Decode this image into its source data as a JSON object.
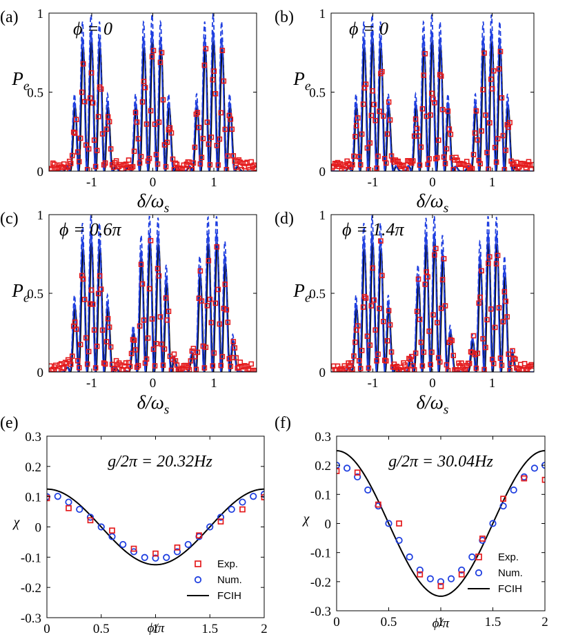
{
  "colors": {
    "exp": "#e41a1c",
    "num": "#1f3fe0",
    "theory": "#000000",
    "dashed": "#1f3fe0",
    "axis": "#000000"
  },
  "chart_data": [
    {
      "panel": "(a)",
      "type": "line",
      "annotation": "ϕ = 0",
      "ylabel": "Pe",
      "xlabel": "δ/ωs",
      "xlim": [
        -1.7,
        1.7
      ],
      "ylim": [
        0,
        1
      ],
      "xticks": [
        -1,
        0,
        1
      ],
      "xtick_labels": [
        "-1",
        "0",
        "1"
      ],
      "yticks": [
        0,
        0.5,
        1
      ],
      "ytick_labels": [
        "0",
        "0.5",
        "1"
      ],
      "phi": 0,
      "seed": 11,
      "series": [
        {
          "name": "Exp."
        },
        {
          "name": "Num."
        },
        {
          "name": "FCIH"
        }
      ]
    },
    {
      "panel": "(b)",
      "type": "line",
      "annotation": "ϕ = 0",
      "ylabel": "Pe",
      "xlabel": "δ/ωs",
      "xlim": [
        -1.7,
        1.7
      ],
      "ylim": [
        0,
        1
      ],
      "xticks": [
        -1,
        0,
        1
      ],
      "xtick_labels": [
        "-1",
        "0",
        "1"
      ],
      "yticks": [
        0,
        0.5,
        1
      ],
      "ytick_labels": [
        "0",
        "0.5",
        "1"
      ],
      "phi": 0,
      "seed": 23,
      "series": [
        {
          "name": "Exp."
        },
        {
          "name": "Num."
        },
        {
          "name": "FCIH"
        }
      ]
    },
    {
      "panel": "(c)",
      "type": "line",
      "annotation": "ϕ = 0.6π",
      "ylabel": "Pe",
      "xlabel": "δ/ωs",
      "xlim": [
        -1.7,
        1.7
      ],
      "ylim": [
        0,
        1
      ],
      "xticks": [
        -1,
        0,
        1
      ],
      "xtick_labels": [
        "-1",
        "0",
        "1"
      ],
      "yticks": [
        0,
        0.5,
        1
      ],
      "ytick_labels": [
        "0",
        "0.5",
        "1"
      ],
      "phi": 0.6,
      "seed": 37,
      "series": [
        {
          "name": "Exp."
        },
        {
          "name": "Num."
        },
        {
          "name": "FCIH"
        }
      ]
    },
    {
      "panel": "(d)",
      "type": "line",
      "annotation": "ϕ = 1.4π",
      "ylabel": "Pe",
      "xlabel": "δ/ωs",
      "xlim": [
        -1.7,
        1.7
      ],
      "ylim": [
        0,
        1
      ],
      "xticks": [
        -1,
        0,
        1
      ],
      "xtick_labels": [
        "-1",
        "0",
        "1"
      ],
      "yticks": [
        0,
        0.5,
        1
      ],
      "ytick_labels": [
        "0",
        "0.5",
        "1"
      ],
      "phi": 1.4,
      "seed": 53,
      "series": [
        {
          "name": "Exp."
        },
        {
          "name": "Num."
        },
        {
          "name": "FCIH"
        }
      ]
    },
    {
      "panel": "(e)",
      "type": "scatter",
      "annotation": "g/2π = 20.32Hz",
      "ylabel": "χ",
      "xlabel": "ϕ/π",
      "xlim": [
        0,
        2
      ],
      "ylim": [
        -0.3,
        0.3
      ],
      "xticks": [
        0,
        0.5,
        1,
        1.5,
        2
      ],
      "xtick_labels": [
        "0",
        "0.5",
        "1",
        "1.5",
        "2"
      ],
      "yticks": [
        -0.3,
        -0.2,
        -0.1,
        0,
        0.1,
        0.2,
        0.3
      ],
      "ytick_labels": [
        "-0.3",
        "-0.2",
        "-0.1",
        "0",
        "0.1",
        "0.2",
        "0.3"
      ],
      "legend_position": "bottom-right",
      "series": [
        {
          "name": "Exp.",
          "x": [
            0,
            0.2,
            0.4,
            0.6,
            0.8,
            1.0,
            1.2,
            1.4,
            1.6,
            1.8,
            2.0
          ],
          "y": [
            0.095,
            0.062,
            0.022,
            -0.012,
            -0.072,
            -0.088,
            -0.068,
            -0.028,
            0.018,
            0.058,
            0.098
          ]
        },
        {
          "name": "Num.",
          "x": [
            0,
            0.1,
            0.2,
            0.3,
            0.4,
            0.5,
            0.6,
            0.7,
            0.8,
            0.9,
            1.0,
            1.1,
            1.2,
            1.3,
            1.4,
            1.5,
            1.6,
            1.7,
            1.8,
            1.9,
            2.0
          ],
          "y": [
            0.1,
            0.101,
            0.082,
            0.058,
            0.032,
            0.0,
            -0.032,
            -0.058,
            -0.082,
            -0.101,
            -0.103,
            -0.101,
            -0.082,
            -0.058,
            -0.032,
            0.0,
            0.032,
            0.058,
            0.082,
            0.101,
            0.108
          ]
        },
        {
          "name": "FCIH",
          "amplitude": 0.125,
          "function": "0.125*cos(pi*phi)"
        }
      ]
    },
    {
      "panel": "(f)",
      "type": "scatter",
      "annotation": "g/2π = 30.04Hz",
      "ylabel": "χ",
      "xlabel": "ϕ/π",
      "xlim": [
        0,
        2
      ],
      "ylim": [
        -0.3,
        0.3
      ],
      "xticks": [
        0,
        0.5,
        1,
        1.5,
        2
      ],
      "xtick_labels": [
        "0",
        "0.5",
        "1",
        "1.5",
        "2"
      ],
      "yticks": [
        -0.3,
        -0.2,
        -0.1,
        0,
        0.1,
        0.2,
        0.3
      ],
      "ytick_labels": [
        "-0.3",
        "-0.2",
        "-0.1",
        "0",
        "0.1",
        "0.2",
        "0.3"
      ],
      "legend_position": "bottom-right",
      "series": [
        {
          "name": "Exp.",
          "x": [
            0,
            0.2,
            0.4,
            0.6,
            0.8,
            1.0,
            1.2,
            1.4,
            1.6,
            1.8,
            2.0
          ],
          "y": [
            0.18,
            0.175,
            0.065,
            0.0,
            -0.175,
            -0.215,
            -0.175,
            -0.052,
            0.085,
            0.155,
            0.15
          ]
        },
        {
          "name": "Num.",
          "x": [
            0,
            0.1,
            0.2,
            0.3,
            0.4,
            0.5,
            0.6,
            0.7,
            0.8,
            0.9,
            1.0,
            1.1,
            1.2,
            1.3,
            1.4,
            1.5,
            1.6,
            1.7,
            1.8,
            1.9,
            2.0
          ],
          "y": [
            0.2,
            0.19,
            0.16,
            0.115,
            0.06,
            0.0,
            -0.058,
            -0.115,
            -0.16,
            -0.19,
            -0.2,
            -0.19,
            -0.16,
            -0.115,
            -0.058,
            0.0,
            0.06,
            0.115,
            0.16,
            0.19,
            0.2
          ]
        },
        {
          "name": "FCIH",
          "amplitude": 0.25,
          "function": "0.25*cos(pi*phi)"
        }
      ]
    }
  ]
}
